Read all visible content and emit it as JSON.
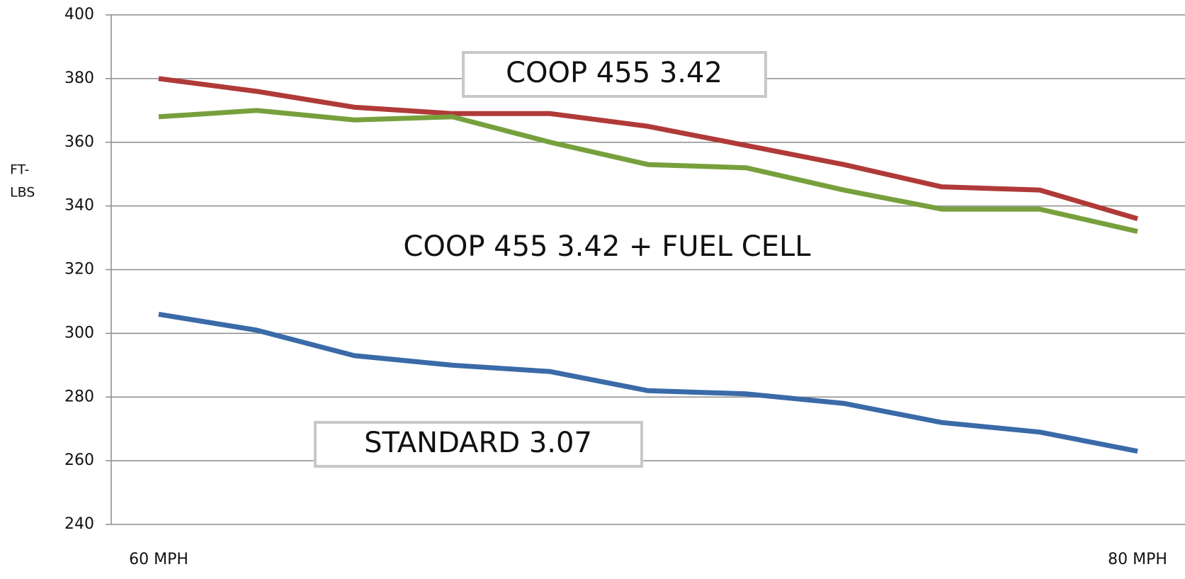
{
  "chart_data": {
    "type": "line",
    "ylabel": [
      "FT-",
      "LBS"
    ],
    "categories": [
      "60 MPH",
      null,
      null,
      null,
      null,
      null,
      null,
      null,
      null,
      null,
      "80 MPH"
    ],
    "series": [
      {
        "name": "COOP 455 3.42",
        "color": "#b03a38",
        "values": [
          380,
          376,
          371,
          369,
          369,
          365,
          359,
          353,
          346,
          345,
          336
        ]
      },
      {
        "name": "COOP 455 3.42 + FUEL CELL",
        "color": "#77a03d",
        "values": [
          368,
          370,
          367,
          368,
          360,
          353,
          352,
          345,
          339,
          339,
          332
        ]
      },
      {
        "name": "STANDARD 3.07",
        "color": "#3a6aa8",
        "values": [
          306,
          301,
          293,
          290,
          288,
          282,
          281,
          278,
          272,
          269,
          263
        ]
      }
    ],
    "ylim": [
      240,
      400
    ],
    "yticks": [
      240,
      260,
      280,
      300,
      320,
      340,
      360,
      380,
      400
    ],
    "grid": true
  }
}
